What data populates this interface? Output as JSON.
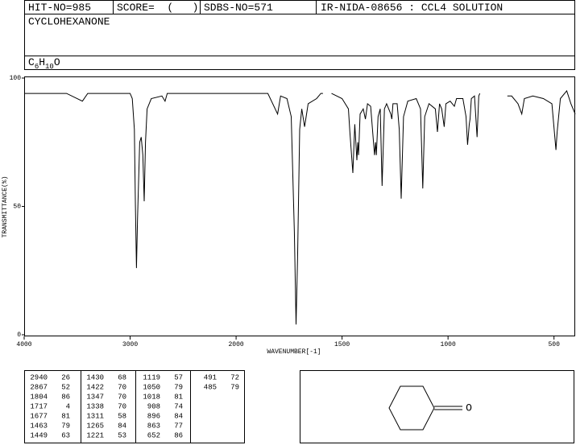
{
  "header": {
    "hit_no": "HIT-NO=985",
    "score": "SCORE=  (   )",
    "sdbs_no": "SDBS-NO=571",
    "source": "IR-NIDA-08656 : CCL4 SOLUTION",
    "compound": "CYCLOHEXANONE",
    "formula": [
      "C",
      "6",
      "H",
      "10",
      "O"
    ]
  },
  "chart_data": {
    "type": "line",
    "x_label": "WAVENUMBER[-1]",
    "y_label": "TRANSMITTANCE(%)",
    "color": "#000000",
    "xlim": [
      4000,
      400
    ],
    "xticks": [
      4000,
      3000,
      2000,
      1500,
      1000,
      500
    ],
    "ylim": [
      0,
      100
    ],
    "yticks": [
      0,
      50,
      100
    ],
    "x": [
      4000,
      3600,
      3450,
      3400,
      3000,
      2980,
      2960,
      2950,
      2940,
      2930,
      2910,
      2895,
      2880,
      2867,
      2855,
      2840,
      2820,
      2800,
      2700,
      2670,
      2650,
      2200,
      2000,
      1850,
      1804,
      1790,
      1760,
      1740,
      1725,
      1717,
      1710,
      1700,
      1690,
      1677,
      1660,
      1620,
      1600,
      1590,
      1570,
      1550,
      1500,
      1470,
      1463,
      1449,
      1440,
      1430,
      1426,
      1422,
      1415,
      1400,
      1390,
      1380,
      1365,
      1347,
      1342,
      1338,
      1330,
      1320,
      1311,
      1300,
      1290,
      1270,
      1265,
      1260,
      1240,
      1230,
      1221,
      1210,
      1190,
      1150,
      1130,
      1119,
      1110,
      1090,
      1060,
      1050,
      1040,
      1030,
      1018,
      1010,
      990,
      970,
      960,
      930,
      915,
      908,
      900,
      896,
      890,
      875,
      863,
      855,
      850,
      780,
      720,
      700,
      670,
      652,
      640,
      600,
      550,
      510,
      491,
      485,
      470,
      440,
      420,
      400
    ],
    "values": [
      94,
      94,
      91,
      94,
      94,
      92,
      80,
      50,
      26,
      45,
      75,
      77,
      70,
      52,
      75,
      88,
      90,
      92,
      93,
      91,
      94,
      94,
      94,
      94,
      86,
      93,
      92,
      85,
      40,
      4,
      30,
      80,
      88,
      81,
      90,
      92,
      94,
      94,
      null,
      94,
      92,
      88,
      79,
      63,
      82,
      68,
      75,
      70,
      86,
      88,
      84,
      90,
      89,
      70,
      75,
      70,
      85,
      88,
      58,
      88,
      90,
      86,
      84,
      90,
      90,
      80,
      53,
      85,
      91,
      92,
      88,
      57,
      85,
      90,
      88,
      79,
      90,
      88,
      81,
      90,
      91,
      89,
      92,
      92,
      85,
      74,
      82,
      84,
      92,
      93,
      77,
      93,
      94,
      null,
      93,
      93,
      90,
      86,
      92,
      93,
      92,
      90,
      72,
      79,
      92,
      95,
      90,
      86
    ]
  },
  "peak_table": [
    [
      [
        2940,
        26
      ],
      [
        2867,
        52
      ],
      [
        1804,
        86
      ],
      [
        1717,
        4
      ],
      [
        1677,
        81
      ],
      [
        1463,
        79
      ],
      [
        1449,
        63
      ]
    ],
    [
      [
        1430,
        68
      ],
      [
        1422,
        70
      ],
      [
        1347,
        70
      ],
      [
        1338,
        70
      ],
      [
        1311,
        58
      ],
      [
        1265,
        84
      ],
      [
        1221,
        53
      ]
    ],
    [
      [
        1119,
        57
      ],
      [
        1050,
        79
      ],
      [
        1018,
        81
      ],
      [
        908,
        74
      ],
      [
        896,
        84
      ],
      [
        863,
        77
      ],
      [
        652,
        86
      ]
    ],
    [
      [
        491,
        72
      ],
      [
        485,
        79
      ]
    ]
  ],
  "structure": {
    "atom": "O"
  }
}
